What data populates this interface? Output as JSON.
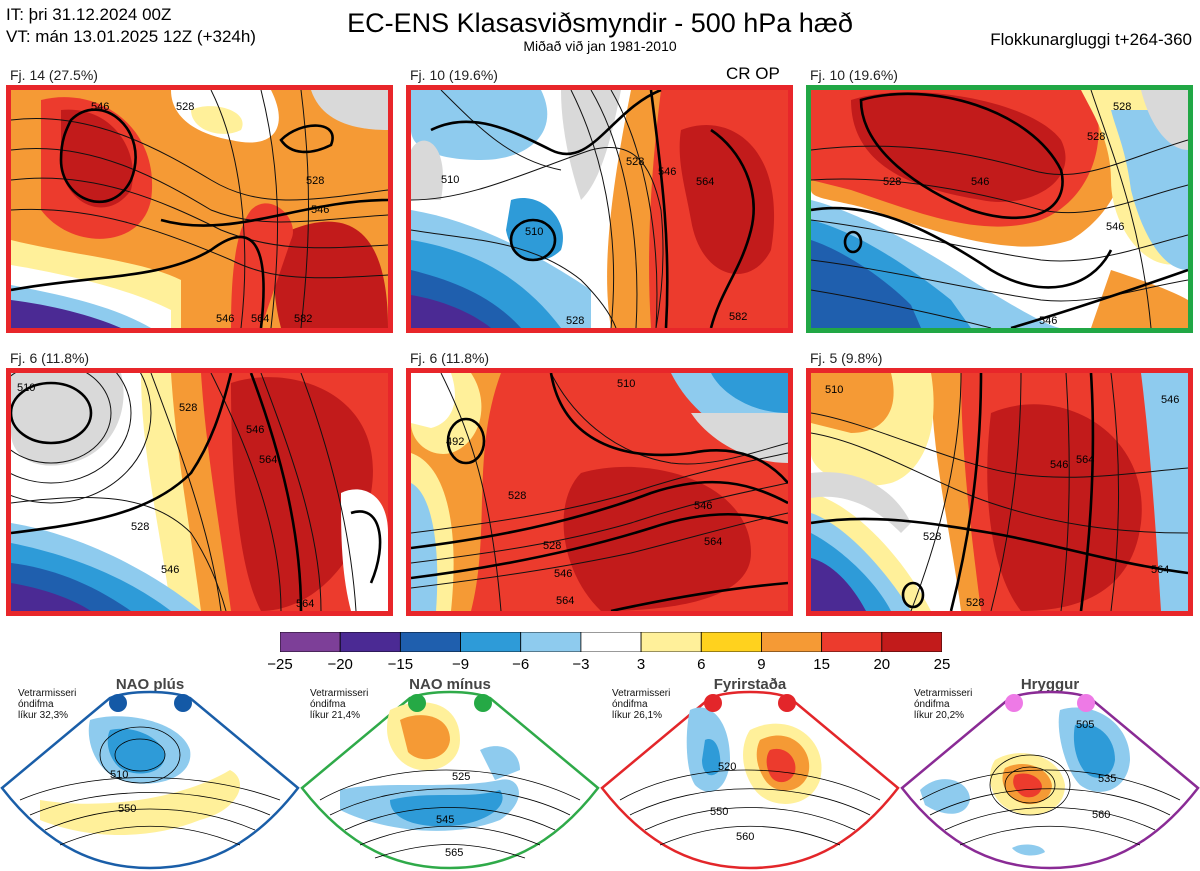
{
  "header": {
    "it_line": "IT: þri 31.12.2024 00Z",
    "vt_line": "VT: mán 13.01.2025 12Z  (+324h)",
    "title": "EC-ENS Klasasviðsmyndir - 500 hPa hæð",
    "subtitle": "Miðað við jan 1981-2010",
    "window": "Flokkunargluggi t+264-360"
  },
  "panels": [
    {
      "label": "Fj. 14 (27.5%)",
      "border": "#e8262a",
      "extra": "",
      "contours": [
        "546",
        "528",
        "528",
        "546",
        "546",
        "564",
        "582"
      ]
    },
    {
      "label": "Fj. 10 (19.6%)",
      "border": "#e8262a",
      "extra": "CR OP",
      "contours": [
        "510",
        "510",
        "528",
        "528",
        "546",
        "564",
        "582"
      ]
    },
    {
      "label": "Fj. 10 (19.6%)",
      "border": "#21a745",
      "extra": "",
      "contours": [
        "528",
        "546",
        "528",
        "546",
        "546",
        "528"
      ]
    },
    {
      "label": "Fj. 6 (11.8%)",
      "border": "#e8262a",
      "extra": "",
      "contours": [
        "510",
        "528",
        "528",
        "546",
        "564",
        "546",
        "564"
      ]
    },
    {
      "label": "Fj. 6 (11.8%)",
      "border": "#e8262a",
      "extra": "",
      "contours": [
        "492",
        "510",
        "528",
        "528",
        "546",
        "564",
        "546",
        "564"
      ]
    },
    {
      "label": "Fj. 5 (9.8%)",
      "border": "#e8262a",
      "extra": "",
      "contours": [
        "510",
        "528",
        "546",
        "564",
        "528",
        "564",
        "546"
      ]
    }
  ],
  "colorbar": {
    "ticks": [
      "−25",
      "−20",
      "−15",
      "−9",
      "−6",
      "−3",
      "3",
      "6",
      "9",
      "15",
      "20",
      "25"
    ],
    "colors": [
      "#7d3f98",
      "#4b2a94",
      "#1f5fae",
      "#2e9bd8",
      "#8ecbee",
      "#ffffff",
      "#fff09a",
      "#ffd21e",
      "#f59a35",
      "#ec3b2d",
      "#c21b1b"
    ]
  },
  "regimes": [
    {
      "name": "NAO plús",
      "prob_lines": [
        "Vetrarmisseri",
        "óndifma",
        "líkur 32,3%"
      ],
      "color": "#1a5ea8",
      "dot_color": "#1459a6",
      "contours": [
        "510",
        "550"
      ]
    },
    {
      "name": "NAO mínus",
      "prob_lines": [
        "Vetrarmisseri",
        "óndifma",
        "líkur 21,4%"
      ],
      "color": "#2faa49",
      "dot_color": "#25a945",
      "contours": [
        "525",
        "545",
        "565"
      ]
    },
    {
      "name": "Fyrirstaða",
      "prob_lines": [
        "Vetrarmisseri",
        "óndifma",
        "líkur 26,1%"
      ],
      "color": "#e3262a",
      "dot_color": "#e3262a",
      "contours": [
        "520",
        "550",
        "560"
      ]
    },
    {
      "name": "Hryggur",
      "prob_lines": [
        "Vetrarmisseri",
        "óndifma",
        "líkur 20,2%"
      ],
      "color": "#8a2b95",
      "dot_color": "#ee7ae6",
      "contours": [
        "505",
        "535",
        "560"
      ]
    }
  ]
}
